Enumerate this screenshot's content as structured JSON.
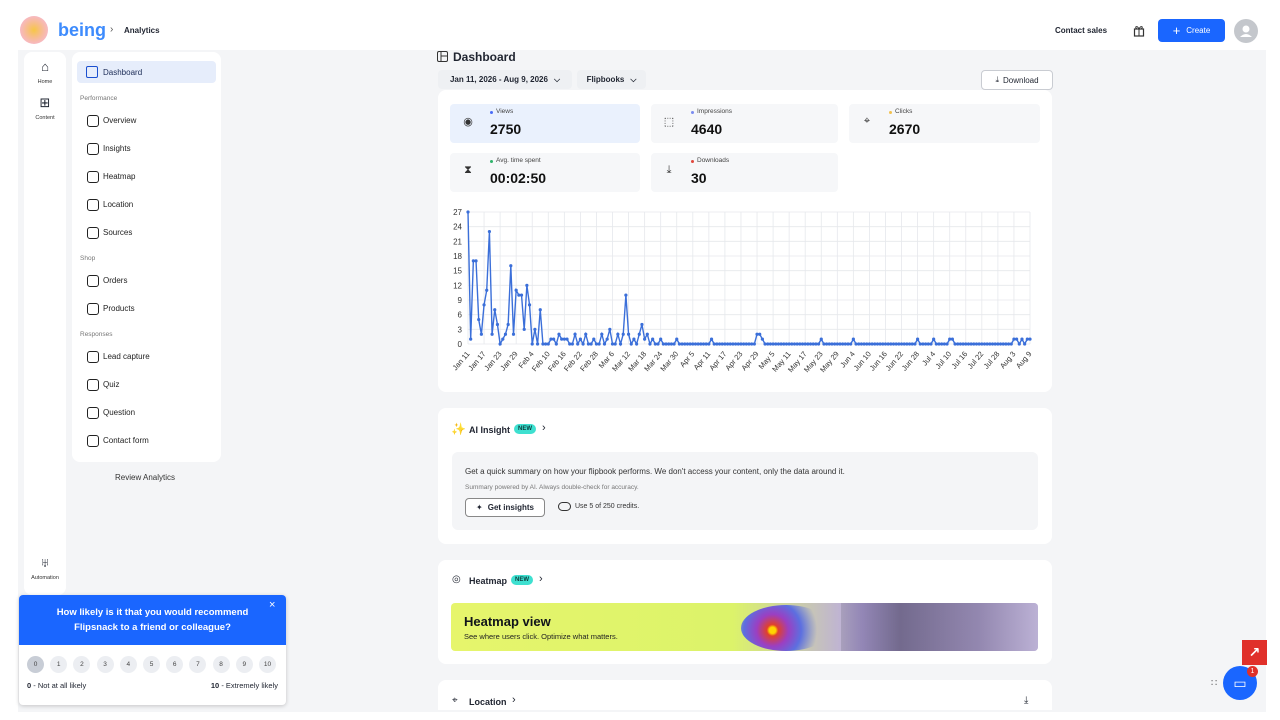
{
  "header": {
    "brand": "being",
    "breadcrumb": "Analytics",
    "contact_sales": "Contact sales",
    "create": "Create"
  },
  "rail": [
    "Home",
    "Content",
    "Automation"
  ],
  "sidebar": {
    "active": "Dashboard",
    "sections": [
      {
        "title": "Performance",
        "items": [
          "Overview",
          "Insights",
          "Heatmap",
          "Location",
          "Sources"
        ]
      },
      {
        "title": "Shop",
        "items": [
          "Orders",
          "Products"
        ]
      },
      {
        "title": "Responses",
        "items": [
          "Lead capture",
          "Quiz",
          "Question",
          "Contact form"
        ]
      }
    ],
    "review": "Review Analytics"
  },
  "dashboard": {
    "title": "Dashboard",
    "date_range": "Jan 11, 2026 - Aug 9, 2026",
    "filter": "Flipbooks",
    "download": "Download",
    "stats": [
      {
        "label": "Views",
        "value": 2750,
        "dot": "#4a6cf7"
      },
      {
        "label": "Impressions",
        "value": 4640,
        "dot": "#7b8cf0"
      },
      {
        "label": "Clicks",
        "value": 2670,
        "dot": "#f2c14e"
      },
      {
        "label": "Avg. time spent",
        "value": "00:02:50",
        "dot": "#2fb36b"
      },
      {
        "label": "Downloads",
        "value": 30,
        "dot": "#e0483e"
      }
    ]
  },
  "chart_data": {
    "type": "line",
    "color": "#3b6fd9",
    "grid": true,
    "ylim": [
      0,
      27
    ],
    "yticks": [
      0,
      3,
      6,
      9,
      12,
      15,
      18,
      21,
      24,
      27
    ],
    "categories": [
      "Jan 11",
      null,
      null,
      null,
      null,
      null,
      "Jan 17",
      null,
      null,
      null,
      null,
      null,
      "Jan 23",
      null,
      null,
      null,
      null,
      null,
      "Jan 29",
      null,
      null,
      null,
      null,
      null,
      "Feb 4",
      null,
      null,
      null,
      null,
      null,
      "Feb 10",
      null,
      null,
      null,
      null,
      null,
      "Feb 16",
      null,
      null,
      null,
      null,
      null,
      "Feb 22",
      null,
      null,
      null,
      null,
      null,
      "Feb 28",
      null,
      null,
      null,
      null,
      null,
      "Mar 6",
      null,
      null,
      null,
      null,
      null,
      "Mar 12",
      null,
      null,
      null,
      null,
      null,
      "Mar 18",
      null,
      null,
      null,
      null,
      null,
      "Mar 24",
      null,
      null,
      null,
      null,
      null,
      "Mar 30",
      null,
      null,
      null,
      null,
      null,
      "Apr 5",
      null,
      null,
      null,
      null,
      null,
      "Apr 11",
      null,
      null,
      null,
      null,
      null,
      "Apr 17",
      null,
      null,
      null,
      null,
      null,
      "Apr 23",
      null,
      null,
      null,
      null,
      null,
      "Apr 29",
      null,
      null,
      null,
      null,
      null,
      "May 5",
      null,
      null,
      null,
      null,
      null,
      "May 11",
      null,
      null,
      null,
      null,
      null,
      "May 17",
      null,
      null,
      null,
      null,
      null,
      "May 23",
      null,
      null,
      null,
      null,
      null,
      "May 29",
      null,
      null,
      null,
      null,
      null,
      "Jun 4",
      null,
      null,
      null,
      null,
      null,
      "Jun 10",
      null,
      null,
      null,
      null,
      null,
      "Jun 16",
      null,
      null,
      null,
      null,
      null,
      "Jun 22",
      null,
      null,
      null,
      null,
      null,
      "Jun 28",
      null,
      null,
      null,
      null,
      null,
      "Jul 4",
      null,
      null,
      null,
      null,
      null,
      "Jul 10",
      null,
      null,
      null,
      null,
      null,
      "Jul 16",
      null,
      null,
      null,
      null,
      null,
      "Jul 22",
      null,
      null,
      null,
      null,
      null,
      "Jul 28",
      null,
      null,
      null,
      null,
      null,
      "Aug 3",
      null,
      null,
      null,
      null,
      null,
      "Aug 9"
    ],
    "values": [
      27,
      1,
      17,
      17,
      5,
      2,
      8,
      11,
      23,
      2,
      7,
      4,
      0,
      1,
      2,
      4,
      16,
      2,
      11,
      10,
      10,
      3,
      12,
      8,
      0,
      3,
      0,
      7,
      0,
      0,
      0,
      1,
      1,
      0,
      2,
      1,
      1,
      1,
      0,
      0,
      2,
      0,
      1,
      0,
      2,
      0,
      0,
      1,
      0,
      0,
      2,
      0,
      1,
      3,
      0,
      0,
      2,
      0,
      2,
      10,
      2,
      0,
      1,
      0,
      2,
      4,
      1,
      2,
      0,
      1,
      0,
      0,
      1,
      0,
      0,
      0,
      0,
      0,
      1,
      0,
      0,
      0,
      0,
      0,
      0,
      0,
      0,
      0,
      0,
      0,
      0,
      1,
      0,
      0,
      0,
      0,
      0,
      0,
      0,
      0,
      0,
      0,
      0,
      0,
      0,
      0,
      0,
      0,
      2,
      2,
      1,
      0,
      0,
      0,
      0,
      0,
      0,
      0,
      0,
      0,
      0,
      0,
      0,
      0,
      0,
      0,
      0,
      0,
      0,
      0,
      0,
      0,
      1,
      0,
      0,
      0,
      0,
      0,
      0,
      0,
      0,
      0,
      0,
      0,
      1,
      0,
      0,
      0,
      0,
      0,
      0,
      0,
      0,
      0,
      0,
      0,
      0,
      0,
      0,
      0,
      0,
      0,
      0,
      0,
      0,
      0,
      0,
      0,
      1,
      0,
      0,
      0,
      0,
      0,
      1,
      0,
      0,
      0,
      0,
      0,
      1,
      1,
      0,
      0,
      0,
      0,
      0,
      0,
      0,
      0,
      0,
      0,
      0,
      0,
      0,
      0,
      0,
      0,
      0,
      0,
      0,
      0,
      0,
      0,
      1,
      1,
      0,
      1,
      0,
      1,
      1
    ]
  },
  "ai_insight": {
    "title": "AI Insight",
    "badge": "NEW",
    "description": "Get a quick summary on how your flipbook performs. We don't access your content, only the data around it.",
    "note": "Summary powered by AI. Always double-check for accuracy.",
    "button": "Get insights",
    "credits": "Use 5 of 250 credits."
  },
  "heatmap": {
    "title": "Heatmap",
    "badge": "NEW",
    "banner_title": "Heatmap view",
    "banner_text": "See where users click. Optimize what matters."
  },
  "location": {
    "title": "Location"
  },
  "survey": {
    "question": "How likely is it that you would recommend Flipsnack to a friend or colleague?",
    "scale": [
      0,
      1,
      2,
      3,
      4,
      5,
      6,
      7,
      8,
      9,
      10
    ],
    "low": "- Not at all likely",
    "high": "- Extremely likely"
  },
  "chat": {
    "badge": 1
  }
}
